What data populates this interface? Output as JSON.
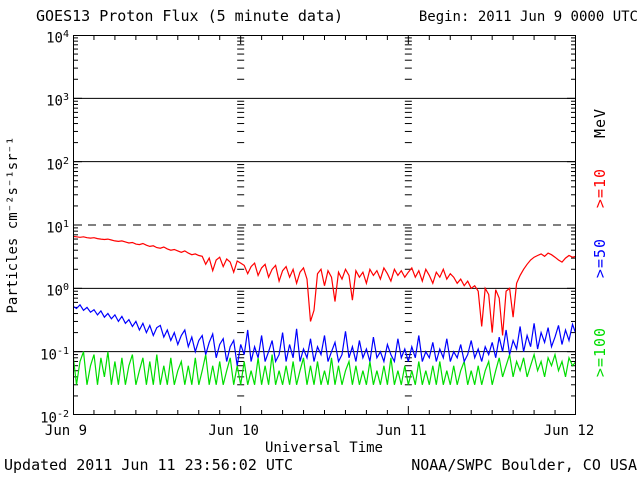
{
  "header": {
    "title": "GOES13 Proton Flux (5 minute data)",
    "begin_label": "Begin: 2011 Jun 9 0000 UTC"
  },
  "footer": {
    "updated": "Updated 2011 Jun 11 23:56:02 UTC",
    "source": "NOAA/SWPC Boulder, CO USA"
  },
  "colors": {
    "frame": "#000000",
    "background": "#ffffff",
    "ge10": "#ff0000",
    "ge50": "#0000ff",
    "ge100": "#00dd00"
  },
  "chart_data": {
    "type": "line",
    "title": "GOES13 Proton Flux (5 minute data)",
    "xlabel": "Universal Time",
    "ylabel": "Particles cm⁻²s⁻¹sr⁻¹",
    "unit_label": "MeV",
    "legend_position": "right",
    "grid": {
      "solid_hlines": [
        1000,
        100,
        1,
        0.1
      ],
      "dashed_hlines": [
        10
      ],
      "day_tick_columns_days": [
        1,
        2
      ]
    },
    "ylim": [
      0.01,
      10000
    ],
    "y_tick_exponents": [
      "4",
      "3",
      "2",
      "1",
      "0",
      "-1",
      "-2"
    ],
    "x_tick_labels": [
      "Jun 9",
      "Jun 10",
      "Jun 11",
      "Jun 12"
    ],
    "x_span_days": 3,
    "x_minor_tick_hours": 3,
    "sample_interval_minutes": 30,
    "series": [
      {
        "name": ">=10",
        "color": "#ff0000",
        "values": [
          6.6,
          6.5,
          6.4,
          6.5,
          6.3,
          6.2,
          6.3,
          6.1,
          6.0,
          5.9,
          6.0,
          5.8,
          5.6,
          5.5,
          5.6,
          5.4,
          5.2,
          5.3,
          5.0,
          4.9,
          5.1,
          4.8,
          4.6,
          4.7,
          4.4,
          4.3,
          4.5,
          4.2,
          4.0,
          4.1,
          3.9,
          3.7,
          3.9,
          3.6,
          3.4,
          3.5,
          3.3,
          3.2,
          2.4,
          3.0,
          1.9,
          2.8,
          3.1,
          2.2,
          2.9,
          2.6,
          1.8,
          2.7,
          2.5,
          2.3,
          1.7,
          2.2,
          2.5,
          1.6,
          2.1,
          2.4,
          1.5,
          2.0,
          2.3,
          1.3,
          1.9,
          2.2,
          1.5,
          2.0,
          1.2,
          1.8,
          2.1,
          1.4,
          0.3,
          0.45,
          1.7,
          2.0,
          1.1,
          1.9,
          1.5,
          0.62,
          1.8,
          1.4,
          2.0,
          1.6,
          0.65,
          1.9,
          1.5,
          1.8,
          1.2,
          2.0,
          1.6,
          1.9,
          1.4,
          2.1,
          1.7,
          1.3,
          2.0,
          1.6,
          1.9,
          1.5,
          1.8,
          2.1,
          1.5,
          1.9,
          1.3,
          2.0,
          1.6,
          1.2,
          1.8,
          1.5,
          2.0,
          1.4,
          1.7,
          1.5,
          1.2,
          1.4,
          1.1,
          1.3,
          1.0,
          1.1,
          0.9,
          0.25,
          1.0,
          0.8,
          0.2,
          0.95,
          0.7,
          0.18,
          0.9,
          1.0,
          0.35,
          1.2,
          1.6,
          2.0,
          2.4,
          2.8,
          3.1,
          3.3,
          3.5,
          3.2,
          3.6,
          3.4,
          3.1,
          2.8,
          2.6,
          3.0,
          3.3,
          3.1,
          3.2
        ]
      },
      {
        "name": ">=50",
        "color": "#0000ff",
        "values": [
          0.52,
          0.48,
          0.55,
          0.45,
          0.5,
          0.42,
          0.46,
          0.38,
          0.44,
          0.35,
          0.4,
          0.33,
          0.38,
          0.3,
          0.36,
          0.28,
          0.32,
          0.25,
          0.3,
          0.22,
          0.28,
          0.2,
          0.26,
          0.18,
          0.24,
          0.26,
          0.17,
          0.22,
          0.15,
          0.2,
          0.13,
          0.18,
          0.22,
          0.12,
          0.17,
          0.1,
          0.15,
          0.18,
          0.09,
          0.14,
          0.19,
          0.08,
          0.13,
          0.16,
          0.07,
          0.12,
          0.15,
          0.06,
          0.13,
          0.09,
          0.22,
          0.07,
          0.12,
          0.08,
          0.18,
          0.07,
          0.1,
          0.15,
          0.07,
          0.09,
          0.2,
          0.07,
          0.13,
          0.08,
          0.23,
          0.07,
          0.11,
          0.08,
          0.16,
          0.07,
          0.12,
          0.09,
          0.18,
          0.07,
          0.1,
          0.14,
          0.07,
          0.09,
          0.21,
          0.08,
          0.12,
          0.07,
          0.15,
          0.08,
          0.11,
          0.07,
          0.17,
          0.08,
          0.1,
          0.07,
          0.13,
          0.09,
          0.07,
          0.16,
          0.08,
          0.11,
          0.07,
          0.12,
          0.08,
          0.18,
          0.07,
          0.1,
          0.08,
          0.14,
          0.07,
          0.11,
          0.08,
          0.16,
          0.07,
          0.1,
          0.08,
          0.13,
          0.07,
          0.09,
          0.15,
          0.08,
          0.11,
          0.07,
          0.12,
          0.09,
          0.14,
          0.08,
          0.17,
          0.1,
          0.22,
          0.09,
          0.15,
          0.11,
          0.25,
          0.1,
          0.18,
          0.12,
          0.28,
          0.11,
          0.2,
          0.14,
          0.24,
          0.12,
          0.17,
          0.26,
          0.13,
          0.22,
          0.15,
          0.27,
          0.19
        ]
      },
      {
        "name": ">=100",
        "color": "#00dd00",
        "values": [
          0.09,
          0.03,
          0.07,
          0.1,
          0.03,
          0.06,
          0.09,
          0.03,
          0.08,
          0.04,
          0.1,
          0.03,
          0.07,
          0.03,
          0.08,
          0.03,
          0.06,
          0.09,
          0.03,
          0.05,
          0.08,
          0.03,
          0.07,
          0.03,
          0.09,
          0.03,
          0.06,
          0.03,
          0.08,
          0.03,
          0.05,
          0.07,
          0.03,
          0.06,
          0.03,
          0.08,
          0.03,
          0.05,
          0.09,
          0.03,
          0.06,
          0.03,
          0.07,
          0.03,
          0.05,
          0.08,
          0.03,
          0.06,
          0.03,
          0.07,
          0.03,
          0.05,
          0.03,
          0.08,
          0.03,
          0.06,
          0.03,
          0.09,
          0.03,
          0.05,
          0.03,
          0.06,
          0.03,
          0.07,
          0.03,
          0.05,
          0.08,
          0.03,
          0.06,
          0.03,
          0.07,
          0.03,
          0.05,
          0.03,
          0.08,
          0.03,
          0.06,
          0.03,
          0.05,
          0.07,
          0.03,
          0.06,
          0.03,
          0.05,
          0.03,
          0.07,
          0.03,
          0.05,
          0.03,
          0.06,
          0.03,
          0.08,
          0.03,
          0.05,
          0.03,
          0.06,
          0.03,
          0.05,
          0.03,
          0.07,
          0.03,
          0.05,
          0.03,
          0.06,
          0.03,
          0.07,
          0.03,
          0.05,
          0.03,
          0.06,
          0.03,
          0.05,
          0.07,
          0.03,
          0.05,
          0.03,
          0.06,
          0.03,
          0.05,
          0.07,
          0.03,
          0.05,
          0.08,
          0.04,
          0.06,
          0.09,
          0.04,
          0.07,
          0.05,
          0.08,
          0.04,
          0.06,
          0.09,
          0.05,
          0.07,
          0.04,
          0.08,
          0.06,
          0.09,
          0.05,
          0.07,
          0.04,
          0.08,
          0.06,
          0.07
        ]
      }
    ]
  }
}
